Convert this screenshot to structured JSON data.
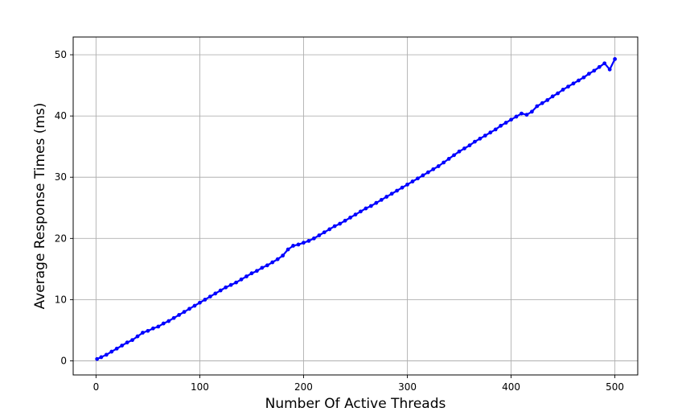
{
  "chart_data": {
    "type": "line",
    "title": "",
    "xlabel": "Number Of Active Threads",
    "ylabel": "Average Response Times (ms)",
    "xlim": [
      -22,
      522
    ],
    "ylim": [
      -2.3,
      52.9
    ],
    "xticks": [
      0,
      100,
      200,
      300,
      400,
      500
    ],
    "yticks": [
      0,
      10,
      20,
      30,
      40,
      50
    ],
    "grid": true,
    "legend": "none",
    "series": [
      {
        "color": "#0000ff",
        "marker": "circle",
        "x": [
          1,
          5,
          10,
          15,
          20,
          25,
          30,
          35,
          40,
          45,
          50,
          55,
          60,
          65,
          70,
          75,
          80,
          85,
          90,
          95,
          100,
          105,
          110,
          115,
          120,
          125,
          130,
          135,
          140,
          145,
          150,
          155,
          160,
          165,
          170,
          175,
          180,
          185,
          190,
          195,
          200,
          205,
          210,
          215,
          220,
          225,
          230,
          235,
          240,
          245,
          250,
          255,
          260,
          265,
          270,
          275,
          280,
          285,
          290,
          295,
          300,
          305,
          310,
          315,
          320,
          325,
          330,
          335,
          340,
          345,
          350,
          355,
          360,
          365,
          370,
          375,
          380,
          385,
          390,
          395,
          400,
          405,
          410,
          415,
          420,
          425,
          430,
          435,
          440,
          445,
          450,
          455,
          460,
          465,
          470,
          475,
          480,
          485,
          490,
          495,
          500
        ],
        "y": [
          0.3,
          0.6,
          1.0,
          1.5,
          2.0,
          2.5,
          3.0,
          3.4,
          4.0,
          4.6,
          4.9,
          5.3,
          5.6,
          6.1,
          6.5,
          7.0,
          7.5,
          8.0,
          8.5,
          9.0,
          9.5,
          10.0,
          10.5,
          11.0,
          11.5,
          12.0,
          12.4,
          12.8,
          13.3,
          13.8,
          14.3,
          14.7,
          15.2,
          15.6,
          16.1,
          16.6,
          17.2,
          18.2,
          18.8,
          19.0,
          19.3,
          19.6,
          20.0,
          20.5,
          21.0,
          21.5,
          22.0,
          22.4,
          22.9,
          23.4,
          23.9,
          24.4,
          24.9,
          25.3,
          25.8,
          26.3,
          26.8,
          27.3,
          27.8,
          28.3,
          28.8,
          29.3,
          29.8,
          30.3,
          30.8,
          31.3,
          31.8,
          32.4,
          33.0,
          33.6,
          34.2,
          34.7,
          35.2,
          35.8,
          36.3,
          36.8,
          37.3,
          37.8,
          38.4,
          38.9,
          39.4,
          39.9,
          40.4,
          40.2,
          40.7,
          41.6,
          42.1,
          42.6,
          43.2,
          43.7,
          44.3,
          44.8,
          45.3,
          45.8,
          46.3,
          46.9,
          47.4,
          48.0,
          48.6,
          47.6,
          49.3
        ]
      }
    ]
  }
}
